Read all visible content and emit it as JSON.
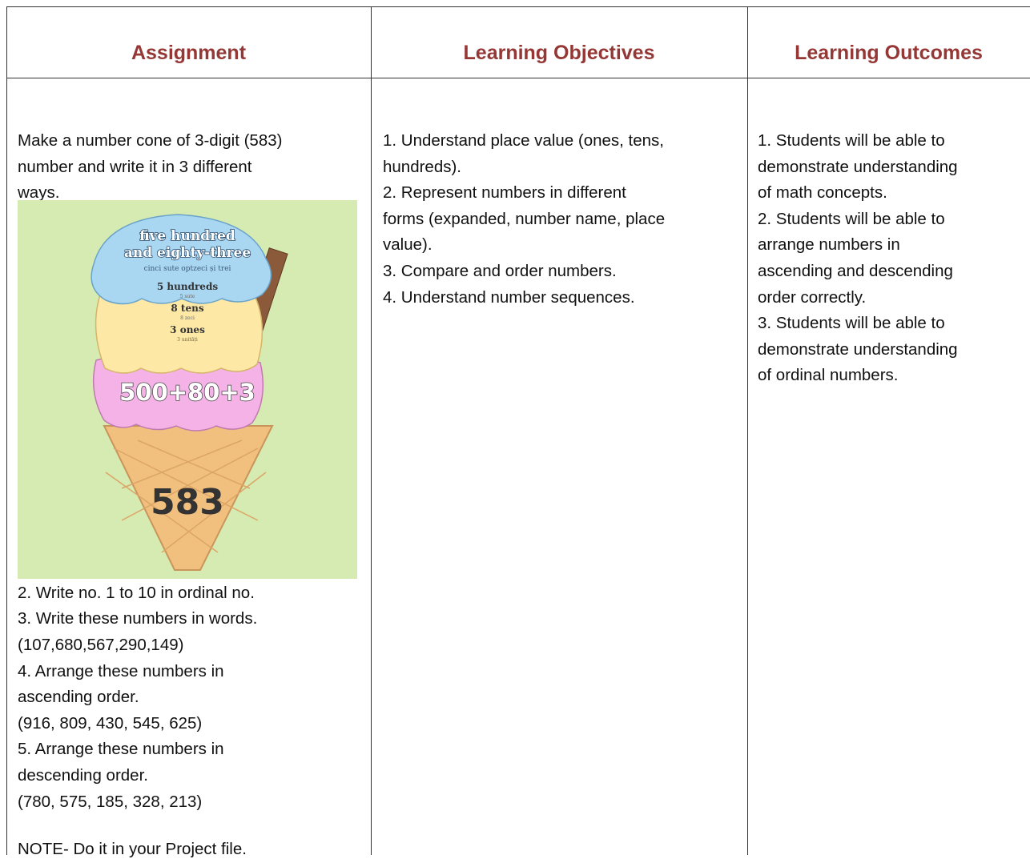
{
  "table": {
    "headers": [
      "Assignment",
      "Learning Objectives",
      "Learning Outcomes"
    ],
    "assignment": {
      "intro": [
        "Make a number cone of 3-digit (583)",
        "number and write it in 3 different",
        "ways."
      ],
      "image": {
        "name_lines": [
          "five hundred",
          "and eighty-three"
        ],
        "name_translation": "cinci sute optzeci și trei",
        "place_values": [
          {
            "label": "5 hundreds",
            "translation": "5 sute"
          },
          {
            "label": "8 tens",
            "translation": "8 zeci"
          },
          {
            "label": "3 ones",
            "translation": "3 unități"
          }
        ],
        "expanded": "500+80+3",
        "number": "583"
      },
      "tasks": [
        "2. Write no. 1 to 10 in ordinal no.",
        "3. Write these numbers in words.",
        "(107,680,567,290,149)",
        "4. Arrange these numbers in",
        "ascending order.",
        "(916, 809, 430, 545, 625)",
        "5. Arrange these numbers in",
        "descending order.",
        "(780, 575, 185, 328, 213)"
      ],
      "note": "NOTE- Do it in your Project file."
    },
    "objectives": [
      "1. Understand place value (ones, tens,",
      "hundreds).",
      "2. Represent numbers in different",
      "forms (expanded, number name, place",
      "value).",
      "3. Compare and order numbers.",
      "4. Understand number sequences."
    ],
    "outcomes": [
      "1. Students will be able to",
      "demonstrate understanding",
      "of math concepts.",
      "2. Students will be able to",
      "arrange numbers in",
      "ascending and descending",
      "order correctly.",
      "3. Students will be able to",
      "demonstrate understanding",
      "of ordinal numbers."
    ]
  }
}
